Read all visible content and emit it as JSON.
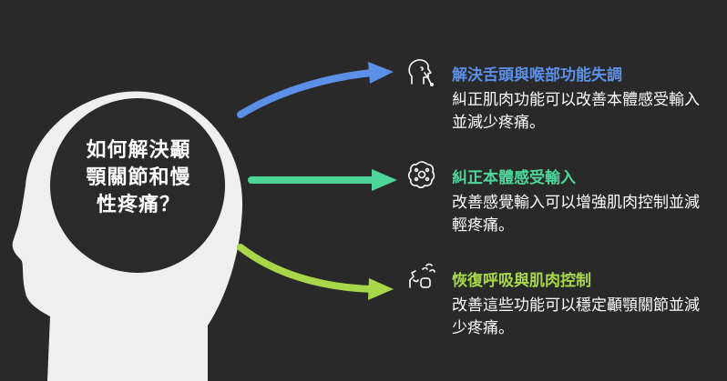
{
  "central_question": "如何解決顳\n顎關節和慢\n性疼痛？",
  "points": [
    {
      "heading": "解決舌頭與喉部功能失調",
      "text": "糾正肌肉功能可以改善本體感受輸入並減少疼痛。",
      "icon": "head-mouth-icon",
      "color": "#5b8fe8"
    },
    {
      "heading": "糾正本體感受輸入",
      "text": "改善感覺輸入可以增強肌肉控制並減輕疼痛。",
      "icon": "neuron-cell-icon",
      "color": "#4fd69a"
    },
    {
      "heading": "恢復呼吸與肌肉控制",
      "text": "改善這些功能可以穩定顳顎關節並減少疼痛。",
      "icon": "breathing-face-icon",
      "color": "#a8d84a"
    }
  ],
  "colors": {
    "background": "#292929",
    "head": "#efefef",
    "circle": "#2a2a2a"
  }
}
